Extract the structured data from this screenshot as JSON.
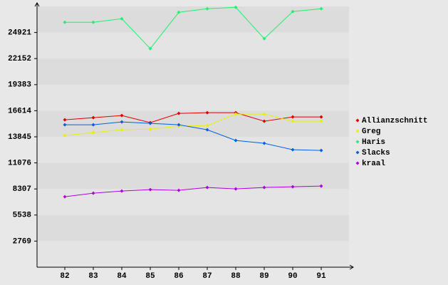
{
  "chart_data": {
    "type": "line",
    "categories": [
      "82",
      "83",
      "84",
      "85",
      "86",
      "87",
      "88",
      "89",
      "90",
      "91"
    ],
    "series": [
      {
        "name": "Allianzschnitt",
        "color": "#e00000",
        "values": [
          15649,
          15876,
          16103,
          15347,
          16330,
          16405,
          16405,
          15498,
          15952,
          15952
        ]
      },
      {
        "name": "Greg",
        "color": "#e8f000",
        "values": [
          13986,
          14288,
          14591,
          14666,
          14969,
          15044,
          16254,
          16254,
          15498,
          15498
        ]
      },
      {
        "name": "Haris",
        "color": "#20f070",
        "values": [
          26006,
          26006,
          26384,
          23209,
          27065,
          27443,
          27594,
          24268,
          27140,
          27443
        ]
      },
      {
        "name": "Slacks",
        "color": "#0060e0",
        "values": [
          15120,
          15120,
          15422,
          15271,
          15120,
          14591,
          13457,
          13154,
          12474,
          12398
        ]
      },
      {
        "name": "kraal",
        "color": "#b000e0",
        "values": [
          7484,
          7862,
          8089,
          8240,
          8165,
          8467,
          8316,
          8467,
          8543,
          8618
        ]
      }
    ],
    "ylim": [
      0,
      27690
    ],
    "yticks": [
      2769,
      5538,
      8307,
      11076,
      13845,
      16614,
      19383,
      22152,
      24921
    ],
    "grid": true
  }
}
